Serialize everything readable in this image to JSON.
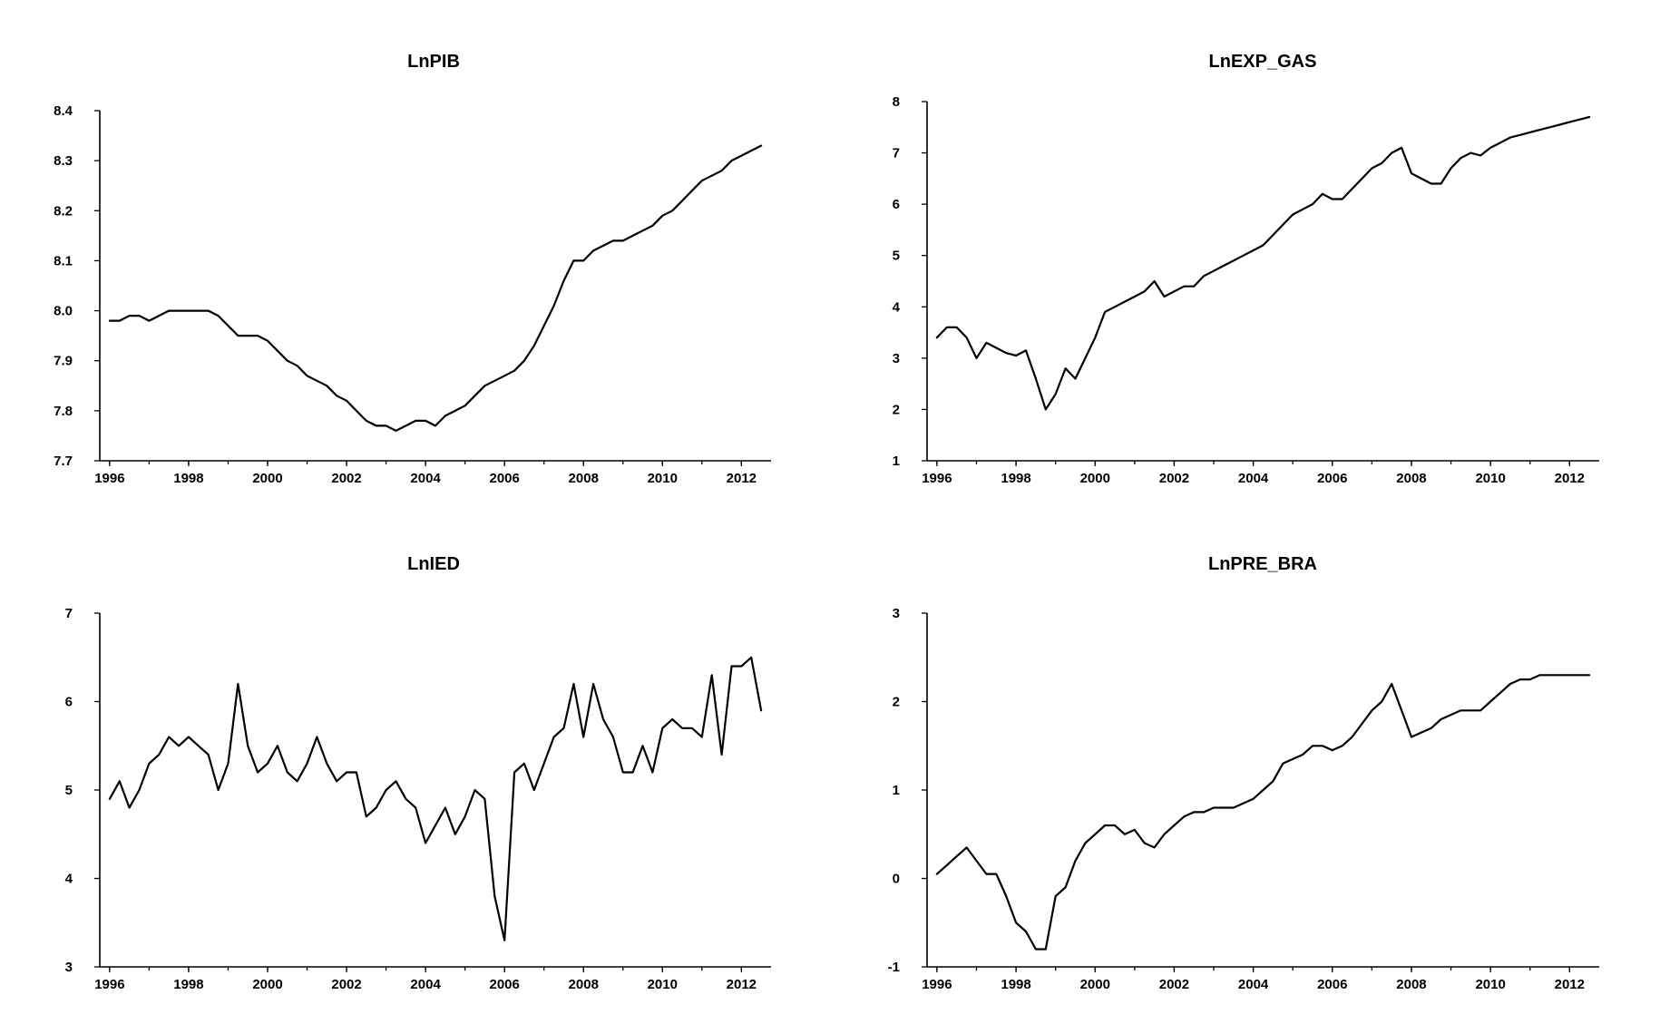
{
  "chart_data": [
    {
      "type": "line",
      "title": "LnPIB",
      "xlabel": "",
      "ylabel": "",
      "x_ticks": [
        "1996",
        "1998",
        "2000",
        "2002",
        "2004",
        "2006",
        "2008",
        "2010",
        "2012"
      ],
      "y_ticks": [
        "7.7",
        "7.8",
        "7.9",
        "8.0",
        "8.1",
        "8.2",
        "8.3",
        "8.4"
      ],
      "xlim": [
        1995.75,
        2012.75
      ],
      "ylim": [
        7.7,
        8.4
      ],
      "grid": false,
      "series": [
        {
          "x": [
            1996.0,
            1996.25,
            1996.5,
            1996.75,
            1997.0,
            1997.25,
            1997.5,
            1997.75,
            1998.0,
            1998.25,
            1998.5,
            1998.75,
            1999.0,
            1999.25,
            1999.5,
            1999.75,
            2000.0,
            2000.25,
            2000.5,
            2000.75,
            2001.0,
            2001.25,
            2001.5,
            2001.75,
            2002.0,
            2002.25,
            2002.5,
            2002.75,
            2003.0,
            2003.25,
            2003.5,
            2003.75,
            2004.0,
            2004.25,
            2004.5,
            2004.75,
            2005.0,
            2005.25,
            2005.5,
            2005.75,
            2006.0,
            2006.25,
            2006.5,
            2006.75,
            2007.0,
            2007.25,
            2007.5,
            2007.75,
            2008.0,
            2008.25,
            2008.5,
            2008.75,
            2009.0,
            2009.25,
            2009.5,
            2009.75,
            2010.0,
            2010.25,
            2010.5,
            2010.75,
            2011.0,
            2011.25,
            2011.5,
            2011.75,
            2012.0,
            2012.25,
            2012.5
          ],
          "values": [
            7.98,
            7.98,
            7.99,
            7.99,
            7.98,
            7.99,
            8.0,
            8.0,
            8.0,
            8.0,
            8.0,
            7.99,
            7.97,
            7.95,
            7.95,
            7.95,
            7.94,
            7.92,
            7.9,
            7.89,
            7.87,
            7.86,
            7.85,
            7.83,
            7.82,
            7.8,
            7.78,
            7.77,
            7.77,
            7.76,
            7.77,
            7.78,
            7.78,
            7.77,
            7.79,
            7.8,
            7.81,
            7.83,
            7.85,
            7.86,
            7.87,
            7.88,
            7.9,
            7.93,
            7.97,
            8.01,
            8.06,
            8.1,
            8.1,
            8.12,
            8.13,
            8.14,
            8.14,
            8.15,
            8.16,
            8.17,
            8.19,
            8.2,
            8.22,
            8.24,
            8.26,
            8.27,
            8.28,
            8.3,
            8.31,
            8.32,
            8.33
          ]
        }
      ]
    },
    {
      "type": "line",
      "title": "LnEXP_GAS",
      "xlabel": "",
      "ylabel": "",
      "x_ticks": [
        "1996",
        "1998",
        "2000",
        "2002",
        "2004",
        "2006",
        "2008",
        "2010",
        "2012"
      ],
      "y_ticks": [
        "1",
        "2",
        "3",
        "4",
        "5",
        "6",
        "7",
        "8"
      ],
      "xlim": [
        1995.75,
        2012.75
      ],
      "ylim": [
        1,
        8
      ],
      "grid": false,
      "series": [
        {
          "x": [
            1996.0,
            1996.25,
            1996.5,
            1996.75,
            1997.0,
            1997.25,
            1997.5,
            1997.75,
            1998.0,
            1998.25,
            1998.5,
            1998.75,
            1999.0,
            1999.25,
            1999.5,
            1999.75,
            2000.0,
            2000.25,
            2000.5,
            2000.75,
            2001.0,
            2001.25,
            2001.5,
            2001.75,
            2002.0,
            2002.25,
            2002.5,
            2002.75,
            2003.0,
            2003.25,
            2003.5,
            2003.75,
            2004.0,
            2004.25,
            2004.5,
            2004.75,
            2005.0,
            2005.25,
            2005.5,
            2005.75,
            2006.0,
            2006.25,
            2006.5,
            2006.75,
            2007.0,
            2007.25,
            2007.5,
            2007.75,
            2008.0,
            2008.25,
            2008.5,
            2008.75,
            2009.0,
            2009.25,
            2009.5,
            2009.75,
            2010.0,
            2010.25,
            2010.5,
            2010.75,
            2011.0,
            2011.25,
            2011.5,
            2011.75,
            2012.0,
            2012.25,
            2012.5
          ],
          "values": [
            3.4,
            3.6,
            3.6,
            3.4,
            3.0,
            3.3,
            3.2,
            3.1,
            3.05,
            3.15,
            2.6,
            2.0,
            2.3,
            2.8,
            2.6,
            3.0,
            3.4,
            3.9,
            4.0,
            4.1,
            4.2,
            4.3,
            4.5,
            4.2,
            4.3,
            4.4,
            4.4,
            4.6,
            4.7,
            4.8,
            4.9,
            5.0,
            5.1,
            5.2,
            5.4,
            5.6,
            5.8,
            5.9,
            6.0,
            6.2,
            6.1,
            6.1,
            6.3,
            6.5,
            6.7,
            6.8,
            7.0,
            7.1,
            6.6,
            6.5,
            6.4,
            6.4,
            6.7,
            6.9,
            7.0,
            6.95,
            7.1,
            7.2,
            7.3,
            7.35,
            7.4,
            7.45,
            7.5,
            7.55,
            7.6,
            7.65,
            7.7
          ]
        }
      ]
    },
    {
      "type": "line",
      "title": "LnIED",
      "xlabel": "",
      "ylabel": "",
      "x_ticks": [
        "1996",
        "1998",
        "2000",
        "2002",
        "2004",
        "2006",
        "2008",
        "2010",
        "2012"
      ],
      "y_ticks": [
        "3",
        "4",
        "5",
        "6",
        "7"
      ],
      "xlim": [
        1995.75,
        2012.75
      ],
      "ylim": [
        3,
        7
      ],
      "grid": false,
      "series": [
        {
          "x": [
            1996.0,
            1996.25,
            1996.5,
            1996.75,
            1997.0,
            1997.25,
            1997.5,
            1997.75,
            1998.0,
            1998.25,
            1998.5,
            1998.75,
            1999.0,
            1999.25,
            1999.5,
            1999.75,
            2000.0,
            2000.25,
            2000.5,
            2000.75,
            2001.0,
            2001.25,
            2001.5,
            2001.75,
            2002.0,
            2002.25,
            2002.5,
            2002.75,
            2003.0,
            2003.25,
            2003.5,
            2003.75,
            2004.0,
            2004.25,
            2004.5,
            2004.75,
            2005.0,
            2005.25,
            2005.5,
            2005.75,
            2006.0,
            2006.25,
            2006.5,
            2006.75,
            2007.0,
            2007.25,
            2007.5,
            2007.75,
            2008.0,
            2008.25,
            2008.5,
            2008.75,
            2009.0,
            2009.25,
            2009.5,
            2009.75,
            2010.0,
            2010.25,
            2010.5,
            2010.75,
            2011.0,
            2011.25,
            2011.5,
            2011.75,
            2012.0,
            2012.25,
            2012.5
          ],
          "values": [
            4.9,
            5.1,
            4.8,
            5.0,
            5.3,
            5.4,
            5.6,
            5.5,
            5.6,
            5.5,
            5.4,
            5.0,
            5.3,
            6.2,
            5.5,
            5.2,
            5.3,
            5.5,
            5.2,
            5.1,
            5.3,
            5.6,
            5.3,
            5.1,
            5.2,
            5.2,
            4.7,
            4.8,
            5.0,
            5.1,
            4.9,
            4.8,
            4.4,
            4.6,
            4.8,
            4.5,
            4.7,
            5.0,
            4.9,
            3.8,
            3.3,
            5.2,
            5.3,
            5.0,
            5.3,
            5.6,
            5.7,
            6.2,
            5.6,
            6.2,
            5.8,
            5.6,
            5.2,
            5.2,
            5.5,
            5.2,
            5.7,
            5.8,
            5.7,
            5.7,
            5.6,
            6.3,
            5.4,
            6.4,
            6.4,
            6.5,
            5.9
          ]
        }
      ]
    },
    {
      "type": "line",
      "title": "LnPRE_BRA",
      "xlabel": "",
      "ylabel": "",
      "x_ticks": [
        "1996",
        "1998",
        "2000",
        "2002",
        "2004",
        "2006",
        "2008",
        "2010",
        "2012"
      ],
      "y_ticks": [
        "-1",
        "0",
        "1",
        "2",
        "3"
      ],
      "xlim": [
        1995.75,
        2012.75
      ],
      "ylim": [
        -1,
        3
      ],
      "grid": false,
      "series": [
        {
          "x": [
            1996.0,
            1996.25,
            1996.5,
            1996.75,
            1997.0,
            1997.25,
            1997.5,
            1997.75,
            1998.0,
            1998.25,
            1998.5,
            1998.75,
            1999.0,
            1999.25,
            1999.5,
            1999.75,
            2000.0,
            2000.25,
            2000.5,
            2000.75,
            2001.0,
            2001.25,
            2001.5,
            2001.75,
            2002.0,
            2002.25,
            2002.5,
            2002.75,
            2003.0,
            2003.25,
            2003.5,
            2003.75,
            2004.0,
            2004.25,
            2004.5,
            2004.75,
            2005.0,
            2005.25,
            2005.5,
            2005.75,
            2006.0,
            2006.25,
            2006.5,
            2006.75,
            2007.0,
            2007.25,
            2007.5,
            2007.75,
            2008.0,
            2008.25,
            2008.5,
            2008.75,
            2009.0,
            2009.25,
            2009.5,
            2009.75,
            2010.0,
            2010.25,
            2010.5,
            2010.75,
            2011.0,
            2011.25,
            2011.5,
            2011.75,
            2012.0,
            2012.25,
            2012.5
          ],
          "values": [
            0.05,
            0.15,
            0.25,
            0.35,
            0.2,
            0.05,
            0.05,
            -0.2,
            -0.5,
            -0.6,
            -0.8,
            -0.8,
            -0.2,
            -0.1,
            0.2,
            0.4,
            0.5,
            0.6,
            0.6,
            0.5,
            0.55,
            0.4,
            0.35,
            0.5,
            0.6,
            0.7,
            0.75,
            0.75,
            0.8,
            0.8,
            0.8,
            0.85,
            0.9,
            1.0,
            1.1,
            1.3,
            1.35,
            1.4,
            1.5,
            1.5,
            1.45,
            1.5,
            1.6,
            1.75,
            1.9,
            2.0,
            2.2,
            1.9,
            1.6,
            1.65,
            1.7,
            1.8,
            1.85,
            1.9,
            1.9,
            1.9,
            2.0,
            2.1,
            2.2,
            2.25,
            2.25,
            2.3,
            2.3,
            2.3,
            2.3,
            2.3,
            2.3
          ]
        }
      ]
    }
  ]
}
